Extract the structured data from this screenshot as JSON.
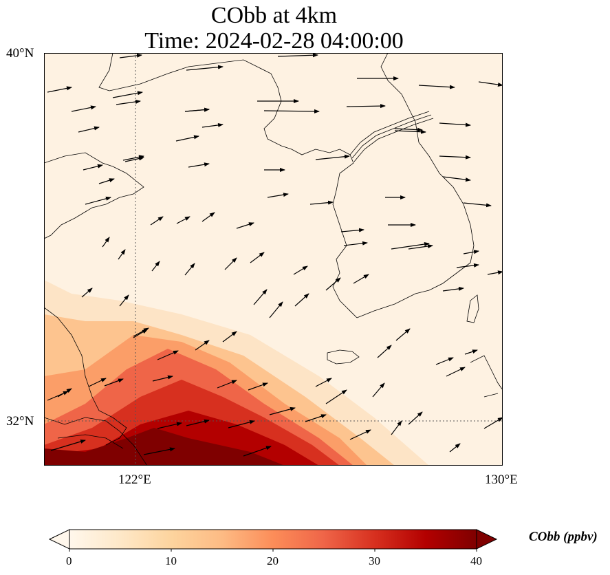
{
  "title": {
    "line1": "CObb at 4km",
    "line2": "Time: 2024-02-28 04:00:00"
  },
  "map": {
    "lat_labels": [
      "40°N",
      "32°N"
    ],
    "lon_labels": [
      "122°E",
      "130°E"
    ],
    "lat_range": [
      31,
      40
    ],
    "lon_range": [
      119.9,
      130
    ],
    "gridlines": {
      "lat": [
        32
      ],
      "lon": [
        122
      ]
    },
    "colors": {
      "background": "#fef2e2",
      "coast": "#000000",
      "arrow": "#000000"
    }
  },
  "colorbar": {
    "title": "CObb (ppbv)",
    "ticks": [
      "0",
      "10",
      "20",
      "30",
      "40"
    ],
    "range": [
      0,
      40
    ],
    "colormap": "OrRd",
    "stops": [
      "#fff7ec",
      "#fee8c8",
      "#fdd49e",
      "#fdbb84",
      "#fc8d59",
      "#ef6548",
      "#d7301f",
      "#b30000",
      "#7f0000"
    ]
  },
  "plume": {
    "description_hidden": "",
    "core_color": "#7f0000"
  }
}
